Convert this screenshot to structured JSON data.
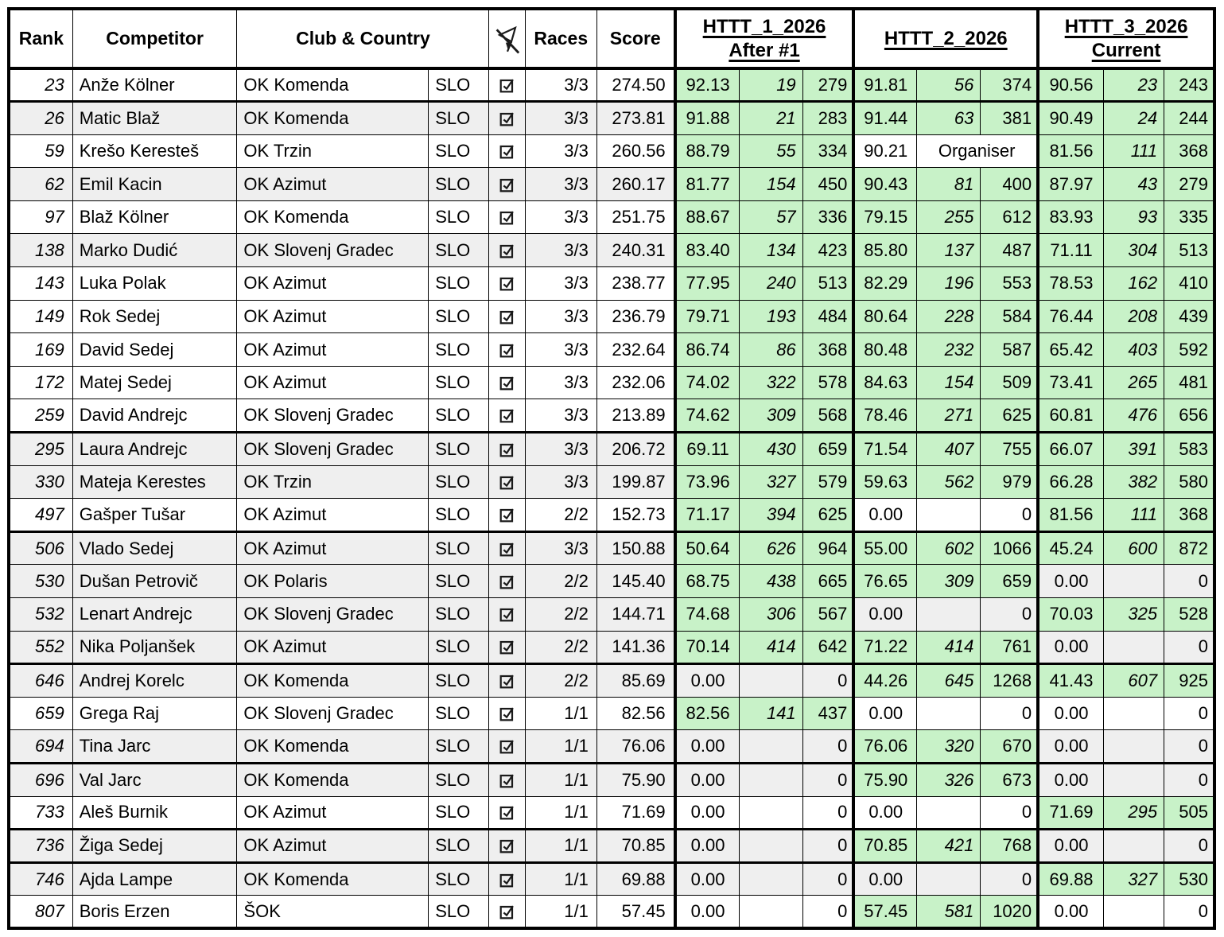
{
  "header": {
    "rank": "Rank",
    "competitor": "Competitor",
    "club_country": "Club & Country",
    "races": "Races",
    "score": "Score",
    "groups": [
      {
        "line1": "HTTT_1_2026",
        "line2": "After #1"
      },
      {
        "line1": "HTTT_2_2026",
        "line2": ""
      },
      {
        "line1": "HTTT_3_2026",
        "line2": "Current"
      }
    ]
  },
  "icons": {
    "header_flag": "flag-with-slash-icon",
    "row_status": "checkbox-checked-icon"
  },
  "colors": {
    "result_green": "#c8f2c8",
    "row_stripe": "#efefef",
    "border": "#000000"
  },
  "rows": [
    {
      "rank": "23",
      "name": "Anže Kölner",
      "club": "OK Komenda",
      "country": "SLO",
      "checked": true,
      "races": "3/3",
      "score": "274.50",
      "shaded": false,
      "thick_below": true,
      "results": [
        {
          "mode": "scored",
          "score": "92.13",
          "pos": "19",
          "pts": "279"
        },
        {
          "mode": "scored",
          "score": "91.81",
          "pos": "56",
          "pts": "374"
        },
        {
          "mode": "scored",
          "score": "90.56",
          "pos": "23",
          "pts": "243"
        }
      ]
    },
    {
      "rank": "26",
      "name": "Matic Blaž",
      "club": "OK Komenda",
      "country": "SLO",
      "checked": true,
      "races": "3/3",
      "score": "273.81",
      "shaded": true,
      "thick_below": false,
      "results": [
        {
          "mode": "scored",
          "score": "91.88",
          "pos": "21",
          "pts": "283"
        },
        {
          "mode": "scored",
          "score": "91.44",
          "pos": "63",
          "pts": "381"
        },
        {
          "mode": "scored",
          "score": "90.49",
          "pos": "24",
          "pts": "244"
        }
      ]
    },
    {
      "rank": "59",
      "name": "Krešo Keresteš",
      "club": "OK Trzin",
      "country": "SLO",
      "checked": true,
      "races": "3/3",
      "score": "260.56",
      "shaded": false,
      "thick_below": false,
      "results": [
        {
          "mode": "scored",
          "score": "88.79",
          "pos": "55",
          "pts": "334"
        },
        {
          "mode": "organiser",
          "score": "90.21",
          "pos": "Organiser",
          "pts": ""
        },
        {
          "mode": "scored",
          "score": "81.56",
          "pos": "111",
          "pts": "368"
        }
      ]
    },
    {
      "rank": "62",
      "name": "Emil Kacin",
      "club": "OK Azimut",
      "country": "SLO",
      "checked": true,
      "races": "3/3",
      "score": "260.17",
      "shaded": true,
      "thick_below": false,
      "results": [
        {
          "mode": "scored",
          "score": "81.77",
          "pos": "154",
          "pts": "450"
        },
        {
          "mode": "scored",
          "score": "90.43",
          "pos": "81",
          "pts": "400"
        },
        {
          "mode": "scored",
          "score": "87.97",
          "pos": "43",
          "pts": "279"
        }
      ]
    },
    {
      "rank": "97",
      "name": "Blaž Kölner",
      "club": "OK Komenda",
      "country": "SLO",
      "checked": true,
      "races": "3/3",
      "score": "251.75",
      "shaded": false,
      "thick_below": false,
      "results": [
        {
          "mode": "scored",
          "score": "88.67",
          "pos": "57",
          "pts": "336"
        },
        {
          "mode": "scored",
          "score": "79.15",
          "pos": "255",
          "pts": "612"
        },
        {
          "mode": "scored",
          "score": "83.93",
          "pos": "93",
          "pts": "335"
        }
      ]
    },
    {
      "rank": "138",
      "name": "Marko Dudić",
      "club": "OK Slovenj Gradec",
      "country": "SLO",
      "checked": true,
      "races": "3/3",
      "score": "240.31",
      "shaded": true,
      "thick_below": false,
      "results": [
        {
          "mode": "scored",
          "score": "83.40",
          "pos": "134",
          "pts": "423"
        },
        {
          "mode": "scored",
          "score": "85.80",
          "pos": "137",
          "pts": "487"
        },
        {
          "mode": "scored",
          "score": "71.11",
          "pos": "304",
          "pts": "513"
        }
      ]
    },
    {
      "rank": "143",
      "name": "Luka Polak",
      "club": "OK Azimut",
      "country": "SLO",
      "checked": true,
      "races": "3/3",
      "score": "238.77",
      "shaded": false,
      "thick_below": false,
      "results": [
        {
          "mode": "scored",
          "score": "77.95",
          "pos": "240",
          "pts": "513"
        },
        {
          "mode": "scored",
          "score": "82.29",
          "pos": "196",
          "pts": "553"
        },
        {
          "mode": "scored",
          "score": "78.53",
          "pos": "162",
          "pts": "410"
        }
      ]
    },
    {
      "rank": "149",
      "name": "Rok Sedej",
      "club": "OK Azimut",
      "country": "SLO",
      "checked": true,
      "races": "3/3",
      "score": "236.79",
      "shaded": false,
      "thick_below": false,
      "results": [
        {
          "mode": "scored",
          "score": "79.71",
          "pos": "193",
          "pts": "484"
        },
        {
          "mode": "scored",
          "score": "80.64",
          "pos": "228",
          "pts": "584"
        },
        {
          "mode": "scored",
          "score": "76.44",
          "pos": "208",
          "pts": "439"
        }
      ]
    },
    {
      "rank": "169",
      "name": "David Sedej",
      "club": "OK Azimut",
      "country": "SLO",
      "checked": true,
      "races": "3/3",
      "score": "232.64",
      "shaded": false,
      "thick_below": false,
      "results": [
        {
          "mode": "scored",
          "score": "86.74",
          "pos": "86",
          "pts": "368"
        },
        {
          "mode": "scored",
          "score": "80.48",
          "pos": "232",
          "pts": "587"
        },
        {
          "mode": "scored",
          "score": "65.42",
          "pos": "403",
          "pts": "592"
        }
      ]
    },
    {
      "rank": "172",
      "name": "Matej Sedej",
      "club": "OK Azimut",
      "country": "SLO",
      "checked": true,
      "races": "3/3",
      "score": "232.06",
      "shaded": false,
      "thick_below": false,
      "results": [
        {
          "mode": "scored",
          "score": "74.02",
          "pos": "322",
          "pts": "578"
        },
        {
          "mode": "scored",
          "score": "84.63",
          "pos": "154",
          "pts": "509"
        },
        {
          "mode": "scored",
          "score": "73.41",
          "pos": "265",
          "pts": "481"
        }
      ]
    },
    {
      "rank": "259",
      "name": "David Andrejc",
      "club": "OK Slovenj Gradec",
      "country": "SLO",
      "checked": true,
      "races": "3/3",
      "score": "213.89",
      "shaded": false,
      "thick_below": true,
      "results": [
        {
          "mode": "scored",
          "score": "74.62",
          "pos": "309",
          "pts": "568"
        },
        {
          "mode": "scored",
          "score": "78.46",
          "pos": "271",
          "pts": "625"
        },
        {
          "mode": "scored",
          "score": "60.81",
          "pos": "476",
          "pts": "656"
        }
      ]
    },
    {
      "rank": "295",
      "name": "Laura Andrejc",
      "club": "OK Slovenj Gradec",
      "country": "SLO",
      "checked": true,
      "races": "3/3",
      "score": "206.72",
      "shaded": true,
      "thick_below": false,
      "results": [
        {
          "mode": "scored",
          "score": "69.11",
          "pos": "430",
          "pts": "659"
        },
        {
          "mode": "scored",
          "score": "71.54",
          "pos": "407",
          "pts": "755"
        },
        {
          "mode": "scored",
          "score": "66.07",
          "pos": "391",
          "pts": "583"
        }
      ]
    },
    {
      "rank": "330",
      "name": "Mateja Kerestes",
      "club": "OK Trzin",
      "country": "SLO",
      "checked": true,
      "races": "3/3",
      "score": "199.87",
      "shaded": true,
      "thick_below": false,
      "results": [
        {
          "mode": "scored",
          "score": "73.96",
          "pos": "327",
          "pts": "579"
        },
        {
          "mode": "scored",
          "score": "59.63",
          "pos": "562",
          "pts": "979"
        },
        {
          "mode": "scored",
          "score": "66.28",
          "pos": "382",
          "pts": "580"
        }
      ]
    },
    {
      "rank": "497",
      "name": "Gašper Tušar",
      "club": "OK Azimut",
      "country": "SLO",
      "checked": true,
      "races": "2/2",
      "score": "152.73",
      "shaded": false,
      "thick_below": true,
      "results": [
        {
          "mode": "scored",
          "score": "71.17",
          "pos": "394",
          "pts": "625"
        },
        {
          "mode": "empty",
          "score": "0.00",
          "pos": "",
          "pts": "0"
        },
        {
          "mode": "scored",
          "score": "81.56",
          "pos": "111",
          "pts": "368"
        }
      ]
    },
    {
      "rank": "506",
      "name": "Vlado Sedej",
      "club": "OK Azimut",
      "country": "SLO",
      "checked": true,
      "races": "3/3",
      "score": "150.88",
      "shaded": true,
      "thick_below": false,
      "results": [
        {
          "mode": "scored",
          "score": "50.64",
          "pos": "626",
          "pts": "964"
        },
        {
          "mode": "scored",
          "score": "55.00",
          "pos": "602",
          "pts": "1066"
        },
        {
          "mode": "scored",
          "score": "45.24",
          "pos": "600",
          "pts": "872"
        }
      ]
    },
    {
      "rank": "530",
      "name": "Dušan Petrovič",
      "club": "OK Polaris",
      "country": "SLO",
      "checked": true,
      "races": "2/2",
      "score": "145.40",
      "shaded": true,
      "thick_below": false,
      "results": [
        {
          "mode": "scored",
          "score": "68.75",
          "pos": "438",
          "pts": "665"
        },
        {
          "mode": "scored",
          "score": "76.65",
          "pos": "309",
          "pts": "659"
        },
        {
          "mode": "empty",
          "score": "0.00",
          "pos": "",
          "pts": "0"
        }
      ]
    },
    {
      "rank": "532",
      "name": "Lenart Andrejc",
      "club": "OK Slovenj Gradec",
      "country": "SLO",
      "checked": true,
      "races": "2/2",
      "score": "144.71",
      "shaded": true,
      "thick_below": false,
      "results": [
        {
          "mode": "scored",
          "score": "74.68",
          "pos": "306",
          "pts": "567"
        },
        {
          "mode": "empty",
          "score": "0.00",
          "pos": "",
          "pts": "0"
        },
        {
          "mode": "scored",
          "score": "70.03",
          "pos": "325",
          "pts": "528"
        }
      ]
    },
    {
      "rank": "552",
      "name": "Nika Poljanšek",
      "club": "OK Azimut",
      "country": "SLO",
      "checked": true,
      "races": "2/2",
      "score": "141.36",
      "shaded": true,
      "thick_below": true,
      "results": [
        {
          "mode": "scored",
          "score": "70.14",
          "pos": "414",
          "pts": "642"
        },
        {
          "mode": "scored",
          "score": "71.22",
          "pos": "414",
          "pts": "761"
        },
        {
          "mode": "empty",
          "score": "0.00",
          "pos": "",
          "pts": "0"
        }
      ]
    },
    {
      "rank": "646",
      "name": "Andrej Korelc",
      "club": "OK Komenda",
      "country": "SLO",
      "checked": true,
      "races": "2/2",
      "score": "85.69",
      "shaded": true,
      "thick_below": false,
      "results": [
        {
          "mode": "empty",
          "score": "0.00",
          "pos": "",
          "pts": "0"
        },
        {
          "mode": "scored",
          "score": "44.26",
          "pos": "645",
          "pts": "1268"
        },
        {
          "mode": "scored",
          "score": "41.43",
          "pos": "607",
          "pts": "925"
        }
      ]
    },
    {
      "rank": "659",
      "name": "Grega Raj",
      "club": "OK Slovenj Gradec",
      "country": "SLO",
      "checked": true,
      "races": "1/1",
      "score": "82.56",
      "shaded": false,
      "thick_below": false,
      "results": [
        {
          "mode": "scored",
          "score": "82.56",
          "pos": "141",
          "pts": "437"
        },
        {
          "mode": "empty",
          "score": "0.00",
          "pos": "",
          "pts": "0"
        },
        {
          "mode": "empty",
          "score": "0.00",
          "pos": "",
          "pts": "0"
        }
      ]
    },
    {
      "rank": "694",
      "name": "Tina Jarc",
      "club": "OK Komenda",
      "country": "SLO",
      "checked": true,
      "races": "1/1",
      "score": "76.06",
      "shaded": true,
      "thick_below": true,
      "results": [
        {
          "mode": "empty",
          "score": "0.00",
          "pos": "",
          "pts": "0"
        },
        {
          "mode": "scored",
          "score": "76.06",
          "pos": "320",
          "pts": "670"
        },
        {
          "mode": "empty",
          "score": "0.00",
          "pos": "",
          "pts": "0"
        }
      ]
    },
    {
      "rank": "696",
      "name": "Val Jarc",
      "club": "OK Komenda",
      "country": "SLO",
      "checked": true,
      "races": "1/1",
      "score": "75.90",
      "shaded": true,
      "thick_below": false,
      "results": [
        {
          "mode": "empty",
          "score": "0.00",
          "pos": "",
          "pts": "0"
        },
        {
          "mode": "scored",
          "score": "75.90",
          "pos": "326",
          "pts": "673"
        },
        {
          "mode": "empty",
          "score": "0.00",
          "pos": "",
          "pts": "0"
        }
      ]
    },
    {
      "rank": "733",
      "name": "Aleš Burnik",
      "club": "OK Azimut",
      "country": "SLO",
      "checked": true,
      "races": "1/1",
      "score": "71.69",
      "shaded": false,
      "thick_below": true,
      "results": [
        {
          "mode": "empty",
          "score": "0.00",
          "pos": "",
          "pts": "0"
        },
        {
          "mode": "empty",
          "score": "0.00",
          "pos": "",
          "pts": "0"
        },
        {
          "mode": "scored",
          "score": "71.69",
          "pos": "295",
          "pts": "505"
        }
      ]
    },
    {
      "rank": "736",
      "name": "Žiga Sedej",
      "club": "OK Azimut",
      "country": "SLO",
      "checked": true,
      "races": "1/1",
      "score": "70.85",
      "shaded": true,
      "thick_below": true,
      "results": [
        {
          "mode": "empty",
          "score": "0.00",
          "pos": "",
          "pts": "0"
        },
        {
          "mode": "scored",
          "score": "70.85",
          "pos": "421",
          "pts": "768"
        },
        {
          "mode": "empty",
          "score": "0.00",
          "pos": "",
          "pts": "0"
        }
      ]
    },
    {
      "rank": "746",
      "name": "Ajda Lampe",
      "club": "OK Komenda",
      "country": "SLO",
      "checked": true,
      "races": "1/1",
      "score": "69.88",
      "shaded": true,
      "thick_below": false,
      "results": [
        {
          "mode": "empty",
          "score": "0.00",
          "pos": "",
          "pts": "0"
        },
        {
          "mode": "empty",
          "score": "0.00",
          "pos": "",
          "pts": "0"
        },
        {
          "mode": "scored",
          "score": "69.88",
          "pos": "327",
          "pts": "530"
        }
      ]
    },
    {
      "rank": "807",
      "name": "Boris Erzen",
      "club": "ŠOK",
      "country": "SLO",
      "checked": true,
      "races": "1/1",
      "score": "57.45",
      "shaded": false,
      "thick_below": false,
      "results": [
        {
          "mode": "empty",
          "score": "0.00",
          "pos": "",
          "pts": "0"
        },
        {
          "mode": "scored",
          "score": "57.45",
          "pos": "581",
          "pts": "1020"
        },
        {
          "mode": "empty",
          "score": "0.00",
          "pos": "",
          "pts": "0"
        }
      ]
    }
  ]
}
